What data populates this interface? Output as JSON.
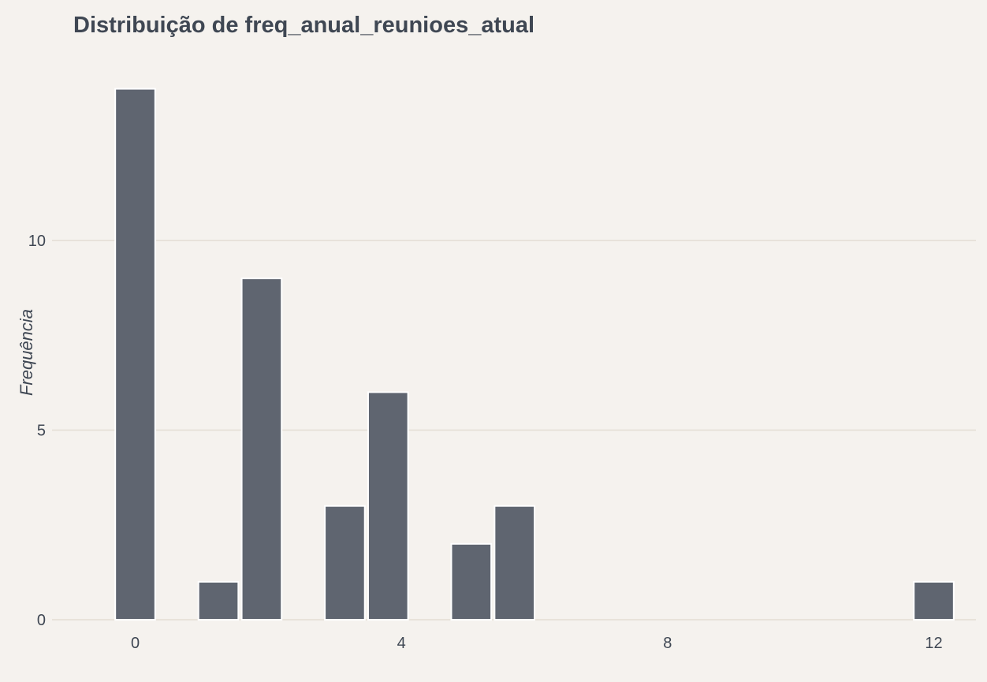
{
  "chart_data": {
    "type": "bar",
    "title": "Distribuição de freq_anual_reunioes_atual",
    "xlabel": "",
    "ylabel": "Frequência",
    "bar_color": "#5f6570",
    "bar_edge_color": "#ffffff",
    "background": "#f5f2ee",
    "grid_color": "#e4ddd3",
    "grid": "horizontal major lines",
    "xlim": [
      -0.5,
      12.5
    ],
    "ylim": [
      0,
      14
    ],
    "x_ticks": [
      0,
      4,
      8,
      12
    ],
    "x_tick_labels": [
      "0",
      "4",
      "8",
      "12"
    ],
    "y_ticks": [
      0,
      5,
      10
    ],
    "y_tick_labels": [
      "0",
      "5",
      "10"
    ],
    "bins": [
      {
        "x0": -0.3,
        "x1": 0.3,
        "count": 14
      },
      {
        "x0": 0.95,
        "x1": 1.55,
        "count": 1
      },
      {
        "x0": 1.6,
        "x1": 2.2,
        "count": 9
      },
      {
        "x0": 2.85,
        "x1": 3.45,
        "count": 3
      },
      {
        "x0": 3.5,
        "x1": 4.1,
        "count": 6
      },
      {
        "x0": 4.75,
        "x1": 5.35,
        "count": 2
      },
      {
        "x0": 5.4,
        "x1": 6.0,
        "count": 3
      },
      {
        "x0": 11.7,
        "x1": 12.3,
        "count": 1
      }
    ]
  }
}
